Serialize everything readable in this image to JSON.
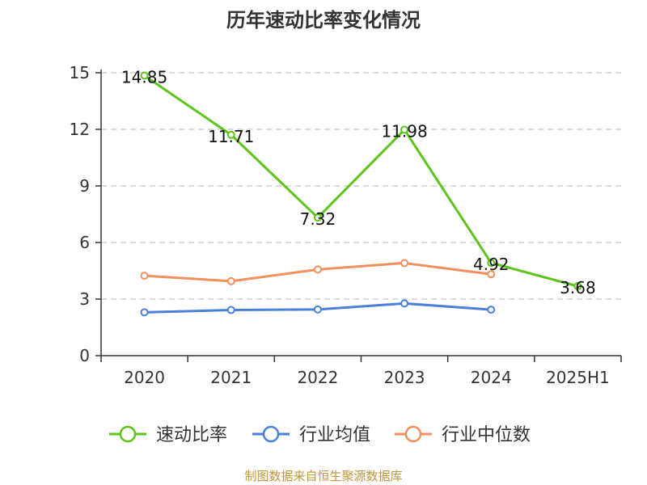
{
  "chart_data": {
    "type": "line",
    "title": "历年速动比率变化情况",
    "categories": [
      "2020",
      "2021",
      "2022",
      "2023",
      "2024",
      "2025H1"
    ],
    "ylim": [
      0,
      15
    ],
    "yticks": [
      0,
      3,
      6,
      9,
      12,
      15
    ],
    "grid": true,
    "legend_position": "bottom",
    "series": [
      {
        "name": "速动比率",
        "color": "#5dc41c",
        "values": [
          14.85,
          11.71,
          7.32,
          11.98,
          4.92,
          3.68
        ],
        "labels": [
          "14.85",
          "11.71",
          "7.32",
          "11.98",
          "4.92",
          "3.68"
        ]
      },
      {
        "name": "行业均值",
        "color": "#4a7fdc",
        "values": [
          2.3,
          2.42,
          2.45,
          2.77,
          2.44,
          null
        ]
      },
      {
        "name": "行业中位数",
        "color": "#f28f5c",
        "values": [
          4.24,
          3.95,
          4.57,
          4.91,
          4.32,
          null
        ]
      }
    ]
  },
  "source": "制图数据来自恒生聚源数据库"
}
